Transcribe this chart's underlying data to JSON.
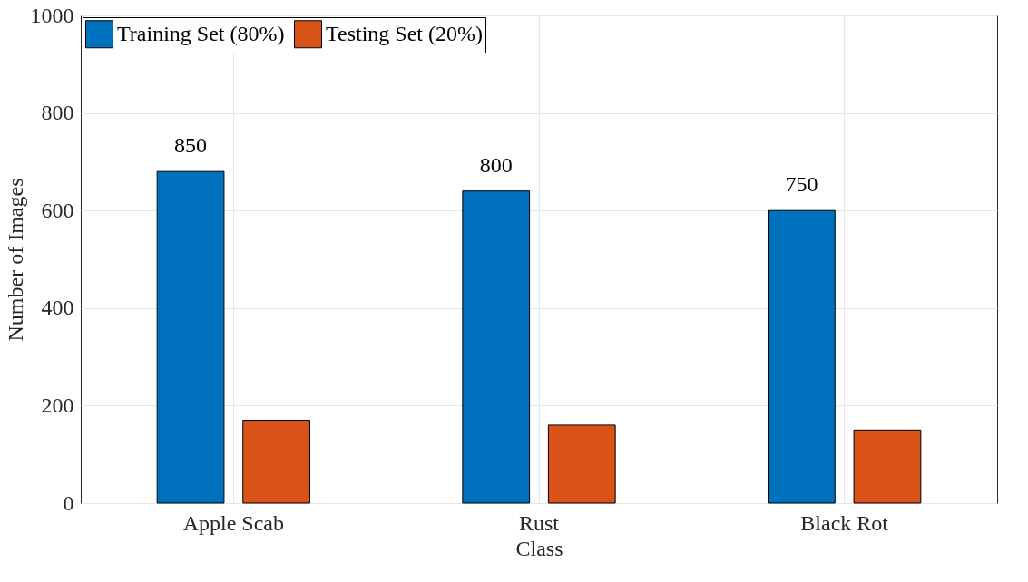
{
  "chart_data": {
    "type": "bar",
    "xlabel": "Class",
    "ylabel": "Number of Images",
    "categories": [
      "Apple Scab",
      "Rust",
      "Black Rot"
    ],
    "series": [
      {
        "name": "Training Set (80%)",
        "color": "#0072bd",
        "values": [
          680,
          640,
          600
        ]
      },
      {
        "name": "Testing Set (20%)",
        "color": "#d95319",
        "values": [
          170,
          160,
          150
        ]
      }
    ],
    "annotations": [
      "850",
      "800",
      "750"
    ],
    "ylim": [
      0,
      1000
    ],
    "yticks": [
      0,
      200,
      400,
      600,
      800,
      1000
    ],
    "grid": true,
    "legend": "top left"
  }
}
